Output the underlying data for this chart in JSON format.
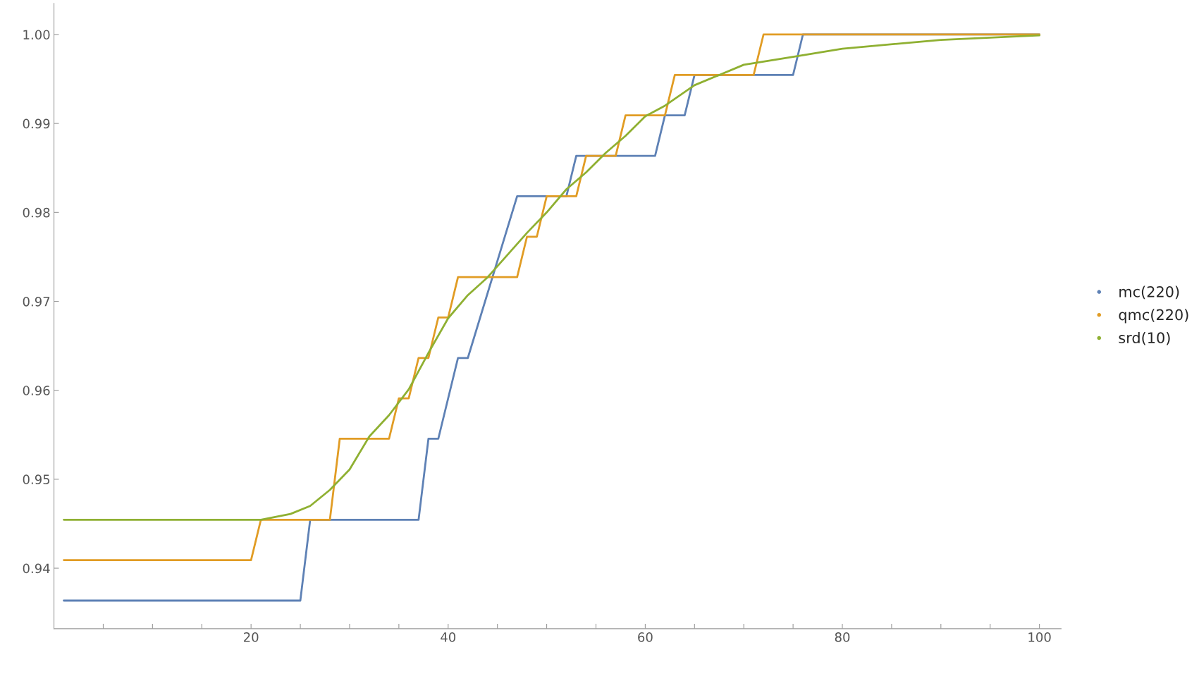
{
  "chart_data": {
    "type": "line",
    "xlim": [
      0,
      102.2
    ],
    "ylim": [
      0.9332,
      1.0035
    ],
    "xticks": [
      {
        "value": 5,
        "label": null
      },
      {
        "value": 10,
        "label": null
      },
      {
        "value": 15,
        "label": null
      },
      20,
      {
        "value": 25,
        "label": null
      },
      {
        "value": 30,
        "label": null
      },
      {
        "value": 35,
        "label": null
      },
      40,
      {
        "value": 45,
        "label": null
      },
      {
        "value": 50,
        "label": null
      },
      {
        "value": 55,
        "label": null
      },
      60,
      {
        "value": 65,
        "label": null
      },
      {
        "value": 70,
        "label": null
      },
      {
        "value": 75,
        "label": null
      },
      80,
      {
        "value": 85,
        "label": null
      },
      {
        "value": 90,
        "label": null
      },
      {
        "value": 95,
        "label": null
      },
      100
    ],
    "yticks": [
      {
        "value": 0.94,
        "label": "0.94"
      },
      {
        "value": 0.95,
        "label": "0.95"
      },
      {
        "value": 0.96,
        "label": "0.96"
      },
      {
        "value": 0.97,
        "label": "0.97"
      },
      {
        "value": 0.98,
        "label": "0.98"
      },
      {
        "value": 0.99,
        "label": "0.99"
      },
      {
        "value": 1.0,
        "label": "1.00"
      }
    ],
    "grid": false,
    "legend": "right",
    "marker": "none",
    "line_style": "solid",
    "series": [
      {
        "name": "mc(220)",
        "color": "#5e81b5",
        "x": [
          1,
          25,
          26,
          37,
          38,
          39,
          41,
          42,
          47,
          52,
          53,
          61,
          62,
          64,
          65,
          75,
          76,
          100
        ],
        "values": [
          0.93636,
          0.93636,
          0.94545,
          0.94545,
          0.95455,
          0.95455,
          0.96364,
          0.96364,
          0.98182,
          0.98182,
          0.98636,
          0.98636,
          0.99091,
          0.99091,
          0.99545,
          0.99545,
          1.0,
          1.0
        ]
      },
      {
        "name": "qmc(220)",
        "color": "#e19c24",
        "x": [
          1,
          20,
          21,
          28,
          29,
          34,
          35,
          36,
          37,
          38,
          39,
          40,
          41,
          47,
          48,
          49,
          50,
          53,
          54,
          57,
          58,
          62,
          63,
          71,
          72,
          100
        ],
        "values": [
          0.94091,
          0.94091,
          0.94545,
          0.94545,
          0.95455,
          0.95455,
          0.95909,
          0.95909,
          0.96364,
          0.96364,
          0.96818,
          0.96818,
          0.97273,
          0.97273,
          0.97727,
          0.97727,
          0.98182,
          0.98182,
          0.98636,
          0.98636,
          0.99091,
          0.99091,
          0.99545,
          0.99545,
          1.0,
          1.0
        ]
      },
      {
        "name": "srd(10)",
        "color": "#8fb032",
        "x": [
          1,
          21,
          24,
          26,
          28,
          30,
          32,
          34,
          36,
          38,
          40,
          42,
          44,
          46,
          48,
          50,
          52,
          54,
          56,
          58,
          60,
          62,
          65,
          70,
          75,
          80,
          90,
          100
        ],
        "values": [
          0.94545,
          0.94545,
          0.9461,
          0.947,
          0.9488,
          0.9511,
          0.9548,
          0.9572,
          0.9601,
          0.9642,
          0.9681,
          0.9707,
          0.9727,
          0.9752,
          0.9777,
          0.98,
          0.9826,
          0.9845,
          0.9867,
          0.9886,
          0.9908,
          0.992,
          0.9943,
          0.9966,
          0.9975,
          0.9984,
          0.9994,
          0.9999
        ]
      }
    ]
  }
}
